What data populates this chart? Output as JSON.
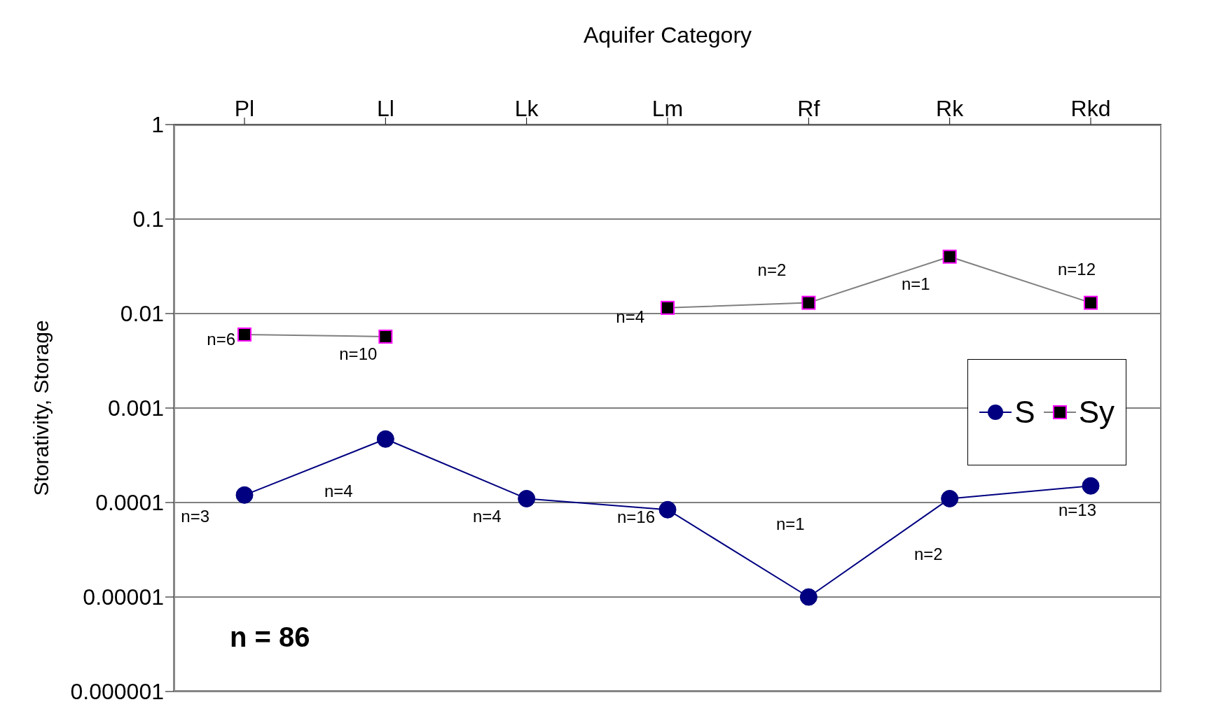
{
  "chart_data": {
    "type": "line",
    "xlabel": "Aquifer Category",
    "ylabel": "Storativity, Storage",
    "categories": [
      "Pl",
      "Ll",
      "Lk",
      "Lm",
      "Rf",
      "Rk",
      "Rkd"
    ],
    "series": [
      {
        "name": "S",
        "color": "#000080",
        "marker": "circle",
        "values": [
          0.00012,
          0.00047,
          0.00011,
          8.4e-05,
          1e-05,
          0.00011,
          0.00015
        ]
      },
      {
        "name": "Sy",
        "color": "#808080",
        "marker": "square",
        "values": [
          0.006,
          0.0057,
          null,
          0.0115,
          0.013,
          0.04,
          0.013
        ]
      }
    ],
    "log": "y",
    "ylim": [
      1e-06,
      1
    ],
    "yticks": [
      1,
      0.1,
      0.01,
      0.001,
      0.0001,
      {
        "value": 1e-05,
        "label": "0.00001"
      },
      {
        "value": 1e-06,
        "label": "0.000001"
      }
    ],
    "grid": "y",
    "legend": "right",
    "annotations": [
      {
        "text": "n=6",
        "x": "Pl",
        "y": 0.006
      },
      {
        "text": "n=10",
        "x": "Ll",
        "y": 0.0057
      },
      {
        "text": "n=4",
        "x": "Lm",
        "y": 0.0115
      },
      {
        "text": "n=2",
        "x": "Rf",
        "y": 0.013
      },
      {
        "text": "n=1",
        "x": "Rk",
        "y": 0.04
      },
      {
        "text": "n=12",
        "x": "Rkd",
        "y": 0.013
      },
      {
        "text": "n=3",
        "x": "Pl",
        "y": 0.00012
      },
      {
        "text": "n=4",
        "x": "Lk",
        "y": 0.00011
      },
      {
        "text": "n=16",
        "x": "Lm",
        "y": 8.4e-05
      },
      {
        "text": "n=2",
        "x": "Rk",
        "y": 0.00011
      },
      {
        "text": "n=13",
        "x": "Rkd",
        "y": 0.00015
      },
      "n=4",
      "n=1",
      "n = 86"
    ]
  }
}
